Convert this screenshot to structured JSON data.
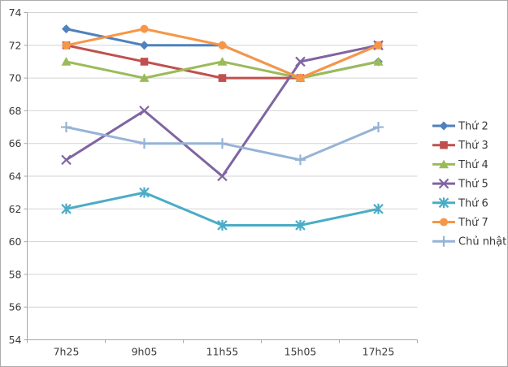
{
  "chart_data": {
    "type": "line",
    "title": "",
    "xlabel": "",
    "ylabel": "",
    "categories": [
      "7h25",
      "9h05",
      "11h55",
      "15h05",
      "17h25"
    ],
    "series": [
      {
        "id": "thu-2",
        "name": "Thứ 2",
        "color": "#4F81BD",
        "marker": "diamond",
        "values": [
          73,
          72,
          72,
          70,
          71
        ]
      },
      {
        "id": "thu-3",
        "name": "Thứ 3",
        "color": "#C0504D",
        "marker": "square",
        "values": [
          72,
          71,
          70,
          70,
          72
        ]
      },
      {
        "id": "thu-4",
        "name": "Thứ 4",
        "color": "#9BBB59",
        "marker": "triangle",
        "values": [
          71,
          70,
          71,
          70,
          71
        ]
      },
      {
        "id": "thu-5",
        "name": "Thứ 5",
        "color": "#8064A2",
        "marker": "x",
        "values": [
          65,
          68,
          64,
          71,
          72
        ]
      },
      {
        "id": "thu-6",
        "name": "Thứ 6",
        "color": "#4BACC6",
        "marker": "asterisk",
        "values": [
          62,
          63,
          61,
          61,
          62
        ]
      },
      {
        "id": "thu-7",
        "name": "Thứ 7",
        "color": "#F79646",
        "marker": "circle",
        "values": [
          72,
          73,
          72,
          70,
          72
        ]
      },
      {
        "id": "chu-nhat",
        "name": "Chủ nhật",
        "color": "#95B3D7",
        "marker": "plus",
        "values": [
          67,
          66,
          66,
          65,
          67
        ]
      }
    ],
    "ylim": [
      54,
      74
    ],
    "ytick_step": 2,
    "ytick_labels": [
      "54",
      "56",
      "58",
      "60",
      "62",
      "64",
      "66",
      "68",
      "70",
      "72",
      "74"
    ],
    "grid": "horizontal",
    "legend_position": "right",
    "colors": {
      "gridline": "#d3d3d3",
      "axis_line": "#a6a6a6",
      "tick_text": "#3a3a3a",
      "legend_text": "#3a3a3a",
      "background": "#ffffff"
    }
  }
}
